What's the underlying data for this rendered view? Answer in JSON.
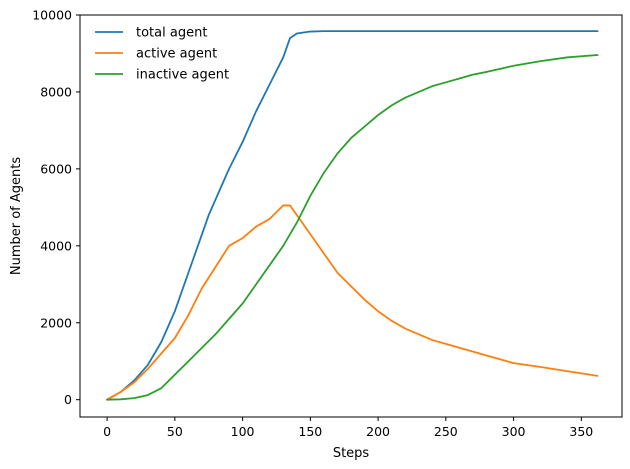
{
  "chart_data": {
    "type": "line",
    "title": "",
    "xlabel": "Steps",
    "ylabel": "Number of Agents",
    "xlim": [
      -20,
      380
    ],
    "ylim": [
      -450,
      10000
    ],
    "xticks": [
      0,
      50,
      100,
      150,
      200,
      250,
      300,
      350
    ],
    "yticks": [
      0,
      2000,
      4000,
      6000,
      8000,
      10000
    ],
    "grid": false,
    "legend_position": "top-left",
    "series": [
      {
        "name": "total agent",
        "color": "#1f77b4",
        "x": [
          0,
          10,
          20,
          30,
          40,
          50,
          60,
          70,
          75,
          80,
          90,
          100,
          110,
          120,
          130,
          135,
          140,
          150,
          160,
          200,
          250,
          300,
          362
        ],
        "y": [
          0,
          200,
          500,
          900,
          1500,
          2300,
          3300,
          4300,
          4800,
          5200,
          6000,
          6700,
          7500,
          8200,
          8900,
          9400,
          9520,
          9570,
          9580,
          9580,
          9580,
          9580,
          9580
        ]
      },
      {
        "name": "active agent",
        "color": "#ff7f0e",
        "x": [
          0,
          10,
          20,
          30,
          40,
          50,
          60,
          70,
          80,
          90,
          100,
          110,
          120,
          130,
          135,
          140,
          150,
          160,
          170,
          180,
          190,
          200,
          210,
          220,
          230,
          240,
          250,
          260,
          270,
          280,
          290,
          300,
          320,
          340,
          362
        ],
        "y": [
          0,
          200,
          450,
          800,
          1200,
          1600,
          2200,
          2900,
          3450,
          4000,
          4200,
          4500,
          4700,
          5050,
          5050,
          4800,
          4300,
          3800,
          3300,
          2950,
          2600,
          2300,
          2050,
          1850,
          1700,
          1550,
          1450,
          1350,
          1250,
          1150,
          1050,
          950,
          850,
          740,
          620
        ]
      },
      {
        "name": "inactive agent",
        "color": "#2ca02c",
        "x": [
          0,
          10,
          20,
          30,
          40,
          50,
          60,
          70,
          80,
          90,
          100,
          110,
          120,
          130,
          140,
          150,
          160,
          170,
          180,
          190,
          200,
          210,
          220,
          230,
          240,
          250,
          260,
          270,
          280,
          290,
          300,
          320,
          340,
          362
        ],
        "y": [
          0,
          10,
          40,
          120,
          300,
          650,
          1000,
          1350,
          1700,
          2100,
          2500,
          3000,
          3500,
          4000,
          4600,
          5300,
          5900,
          6400,
          6800,
          7100,
          7400,
          7650,
          7850,
          8000,
          8150,
          8250,
          8350,
          8450,
          8520,
          8600,
          8680,
          8800,
          8900,
          8960
        ]
      }
    ]
  }
}
